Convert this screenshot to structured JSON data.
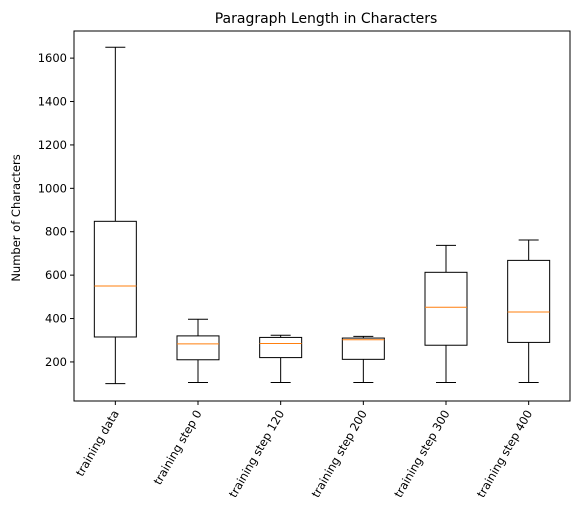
{
  "chart_data": {
    "type": "box",
    "title": "Paragraph Length in Characters",
    "xlabel": "",
    "ylabel": "Number of Characters",
    "ylim": [
      20,
      1725
    ],
    "yticks": [
      200,
      400,
      600,
      800,
      1000,
      1200,
      1400,
      1600
    ],
    "grid": false,
    "categories": [
      "training data",
      "training step 0",
      "training step 120",
      "training step 200",
      "training step 300",
      "training step 400"
    ],
    "boxes": [
      {
        "whisker_low": 100,
        "q1": 315,
        "median": 550,
        "q3": 848,
        "whisker_high": 1650
      },
      {
        "whisker_low": 105,
        "q1": 210,
        "median": 283,
        "q3": 320,
        "whisker_high": 397
      },
      {
        "whisker_low": 105,
        "q1": 220,
        "median": 285,
        "q3": 313,
        "whisker_high": 323
      },
      {
        "whisker_low": 105,
        "q1": 212,
        "median": 302,
        "q3": 310,
        "whisker_high": 318
      },
      {
        "whisker_low": 105,
        "q1": 277,
        "median": 452,
        "q3": 613,
        "whisker_high": 737
      },
      {
        "whisker_low": 105,
        "q1": 290,
        "median": 430,
        "q3": 668,
        "whisker_high": 762
      }
    ],
    "colors": {
      "box": "#000000",
      "median": "#ff7f0e",
      "whisker": "#000000"
    }
  }
}
